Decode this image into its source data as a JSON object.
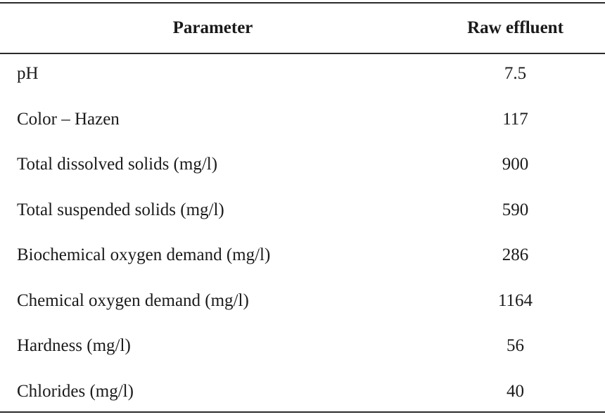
{
  "table": {
    "headers": {
      "parameter": "Parameter",
      "value": "Raw effluent"
    },
    "rows": [
      {
        "parameter": "pH",
        "value": "7.5"
      },
      {
        "parameter": "Color – Hazen",
        "value": "117"
      },
      {
        "parameter": "Total dissolved solids (mg/l)",
        "value": "900"
      },
      {
        "parameter": "Total suspended solids (mg/l)",
        "value": "590"
      },
      {
        "parameter": "Biochemical oxygen demand (mg/l)",
        "value": "286"
      },
      {
        "parameter": "Chemical oxygen demand (mg/l)",
        "value": "1164"
      },
      {
        "parameter": "Hardness (mg/l)",
        "value": "56"
      },
      {
        "parameter": "Chlorides (mg/l)",
        "value": "40"
      }
    ]
  }
}
